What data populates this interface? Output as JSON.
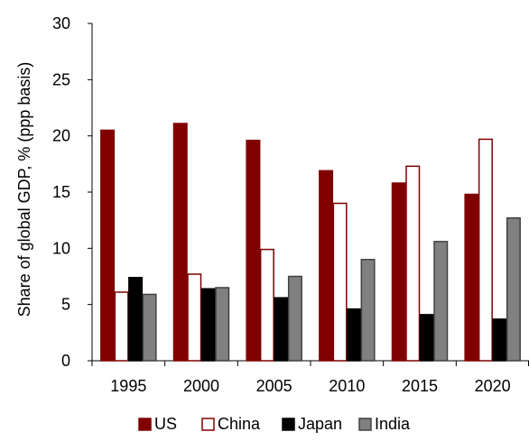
{
  "chart_data": {
    "type": "bar",
    "title": "",
    "xlabel": "",
    "ylabel": "Share of global GDP, % (ppp basis)",
    "ylim": [
      0,
      30
    ],
    "yticks": [
      0,
      5,
      10,
      15,
      20,
      25,
      30
    ],
    "categories": [
      "1995",
      "2000",
      "2005",
      "2010",
      "2015",
      "2020"
    ],
    "grid": false,
    "legend_position": "bottom",
    "series": [
      {
        "name": "US",
        "values": [
          20.5,
          21.1,
          19.6,
          16.9,
          15.8,
          14.8
        ],
        "fill": "#800000",
        "stroke": "#800000"
      },
      {
        "name": "China",
        "values": [
          6.1,
          7.7,
          9.9,
          14.0,
          17.3,
          19.7
        ],
        "fill": "#ffffff",
        "stroke": "#800000"
      },
      {
        "name": "Japan",
        "values": [
          7.4,
          6.4,
          5.6,
          4.6,
          4.1,
          3.7
        ],
        "fill": "#000000",
        "stroke": "#000000"
      },
      {
        "name": "India",
        "values": [
          5.9,
          6.5,
          7.5,
          9.0,
          10.6,
          12.7
        ],
        "fill": "#808080",
        "stroke": "#404040"
      }
    ]
  }
}
